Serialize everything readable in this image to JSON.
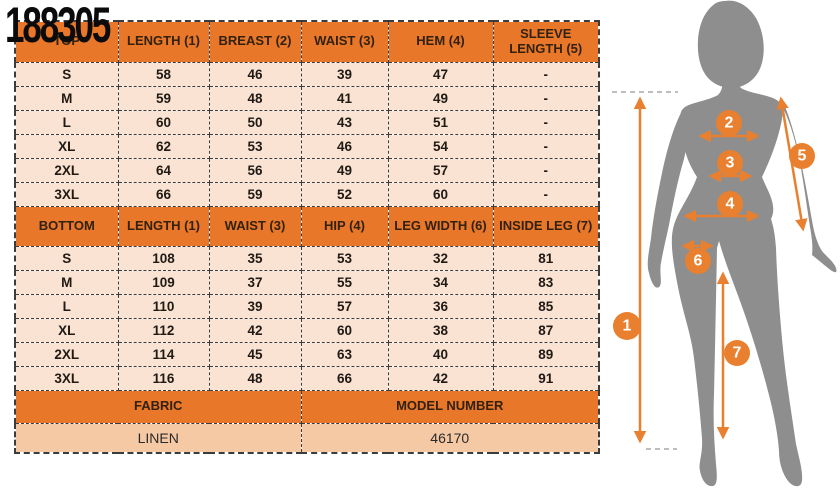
{
  "product_code": "188305",
  "size_chart": {
    "top_section": {
      "headers": [
        "TOP",
        "LENGTH (1)",
        "BREAST (2)",
        "WAIST (3)",
        "HEM (4)",
        "SLEEVE LENGTH (5)"
      ],
      "rows": [
        [
          "S",
          "58",
          "46",
          "39",
          "47",
          "-"
        ],
        [
          "M",
          "59",
          "48",
          "41",
          "49",
          "-"
        ],
        [
          "L",
          "60",
          "50",
          "43",
          "51",
          "-"
        ],
        [
          "XL",
          "62",
          "53",
          "46",
          "54",
          "-"
        ],
        [
          "2XL",
          "64",
          "56",
          "49",
          "57",
          "-"
        ],
        [
          "3XL",
          "66",
          "59",
          "52",
          "60",
          "-"
        ]
      ]
    },
    "bottom_section": {
      "headers": [
        "BOTTOM",
        "LENGTH (1)",
        "WAIST (3)",
        "HIP (4)",
        "LEG WIDTH (6)",
        "INSIDE LEG (7)"
      ],
      "rows": [
        [
          "S",
          "108",
          "35",
          "53",
          "32",
          "81"
        ],
        [
          "M",
          "109",
          "37",
          "55",
          "34",
          "83"
        ],
        [
          "L",
          "110",
          "39",
          "57",
          "36",
          "85"
        ],
        [
          "XL",
          "112",
          "42",
          "60",
          "38",
          "87"
        ],
        [
          "2XL",
          "114",
          "45",
          "63",
          "40",
          "89"
        ],
        [
          "3XL",
          "116",
          "48",
          "66",
          "42",
          "91"
        ]
      ]
    },
    "footer": {
      "fabric_label": "FABRIC",
      "fabric_value": "LINEN",
      "model_label": "MODEL NUMBER",
      "model_value": "46170"
    }
  },
  "figure": {
    "markers": [
      "1",
      "2",
      "3",
      "4",
      "5",
      "6",
      "7"
    ]
  },
  "colors": {
    "header_orange": "#E8772A",
    "row_peach": "#FAE3D3",
    "footer_peach": "#F5C9A4",
    "silhouette_gray": "#8E8E8E",
    "annotation_orange": "#E8802F"
  }
}
